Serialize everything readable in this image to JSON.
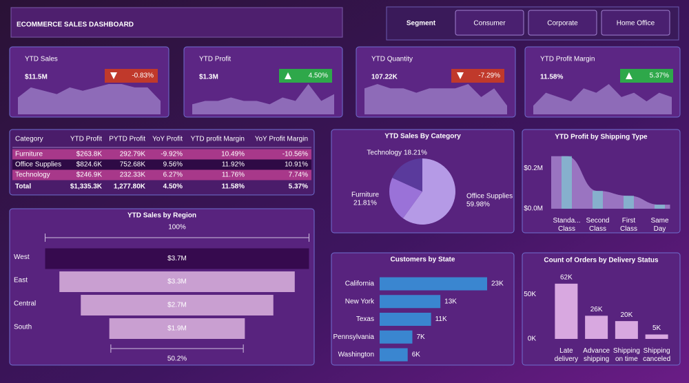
{
  "header": {
    "title": "ECOMMERCE SALES DASHBOARD",
    "segment_label": "Segment",
    "segments": [
      "Consumer",
      "Corporate",
      "Home Office"
    ]
  },
  "kpis": [
    {
      "title": "YTD Sales",
      "value": "$11.5M",
      "change": "-0.83%",
      "trend": "down",
      "sparkline": [
        5,
        8,
        7,
        6,
        8,
        7,
        8,
        9,
        9,
        8,
        8,
        4
      ]
    },
    {
      "title": "YTD Profit",
      "value": "$1.3M",
      "change": "4.50%",
      "trend": "up",
      "sparkline": [
        3,
        4,
        4,
        5,
        4,
        4,
        3,
        5,
        4,
        9,
        4,
        6
      ]
    },
    {
      "title": "YTD Quantity",
      "value": "107.22K",
      "change": "-7.29%",
      "trend": "down",
      "sparkline": [
        6,
        7,
        6,
        6,
        5,
        6,
        6,
        6,
        7,
        4,
        6,
        2
      ]
    },
    {
      "title": "YTD Profit Margin",
      "value": "11.58%",
      "change": "5.37%",
      "trend": "up",
      "sparkline": [
        2,
        5,
        4,
        3,
        6,
        5,
        7,
        4,
        5,
        3,
        5,
        4
      ]
    }
  ],
  "table": {
    "columns": [
      "Category",
      "YTD Profit",
      "PYTD Profit",
      "YoY Profit",
      "YTD profit Margin",
      "YoY Profit Margin"
    ],
    "rows": [
      [
        "Furniture",
        "$263.8K",
        "292.79K",
        "-9.92%",
        "10.49%",
        "-10.56%"
      ],
      [
        "Office Supplies",
        "$824.6K",
        "752.68K",
        "9.56%",
        "11.92%",
        "10.91%"
      ],
      [
        "Technology",
        "$246.9K",
        "232.33K",
        "6.27%",
        "11.76%",
        "7.74%"
      ],
      [
        "Total",
        "$1,335.3K",
        "1,277.80K",
        "4.50%",
        "11.58%",
        "5.37%"
      ]
    ]
  },
  "chart_data": [
    {
      "type": "funnel",
      "title": "YTD Sales by Region",
      "categories": [
        "West",
        "East",
        "Central",
        "South"
      ],
      "values": [
        3.7,
        3.3,
        2.7,
        1.9
      ],
      "value_labels": [
        "$3.7M",
        "$3.3M",
        "$2.7M",
        "$1.9M"
      ],
      "colors": [
        "#360a4e",
        "#c99fd1",
        "#c99fd1",
        "#c99fd1"
      ],
      "top_percent": {
        "value": 100,
        "label": "100%"
      },
      "bottom_percent": {
        "value": 50.2,
        "label": "50.2%"
      }
    },
    {
      "type": "pie",
      "title": "YTD Sales By Category",
      "categories": [
        "Office Supplies",
        "Furniture",
        "Technology"
      ],
      "values": [
        59.98,
        21.81,
        18.21
      ],
      "value_labels": [
        "59.98%",
        "21.81%",
        "18.21%"
      ],
      "colors": [
        "#b59ae6",
        "#9a72d8",
        "#5a3a9c"
      ]
    },
    {
      "type": "bar",
      "title": "YTD Profit by Shipping Type",
      "categories": [
        "Standa... Class",
        "Second Class",
        "First Class",
        "Same Day"
      ],
      "values": [
        0.26,
        0.088,
        0.064,
        0.02
      ],
      "color": "#7fc4d0",
      "area_color": "#b090d8",
      "ylim": [
        0,
        0.3
      ],
      "yticks": [
        {
          "value": 0,
          "label": "$0.0M"
        },
        {
          "value": 0.2,
          "label": "$0.2M"
        }
      ]
    },
    {
      "type": "hbar",
      "title": "Customers by State",
      "categories": [
        "California",
        "New York",
        "Texas",
        "Pennsylvania",
        "Washington"
      ],
      "values": [
        23,
        13,
        11,
        7,
        6
      ],
      "value_labels": [
        "23K",
        "13K",
        "11K",
        "7K",
        "6K"
      ],
      "color": "#3a86d0"
    },
    {
      "type": "bar",
      "title": "Count of Orders by Delivery Status",
      "categories": [
        "Late delivery",
        "Advance shipping",
        "Shipping on time",
        "Shipping canceled"
      ],
      "values": [
        62,
        26,
        20,
        5
      ],
      "value_labels": [
        "62K",
        "26K",
        "20K",
        "5K"
      ],
      "color": "#d8a8e0",
      "ylim": [
        0,
        75
      ],
      "yticks": [
        {
          "value": 0,
          "label": "0K"
        },
        {
          "value": 50,
          "label": "50K"
        }
      ]
    }
  ]
}
